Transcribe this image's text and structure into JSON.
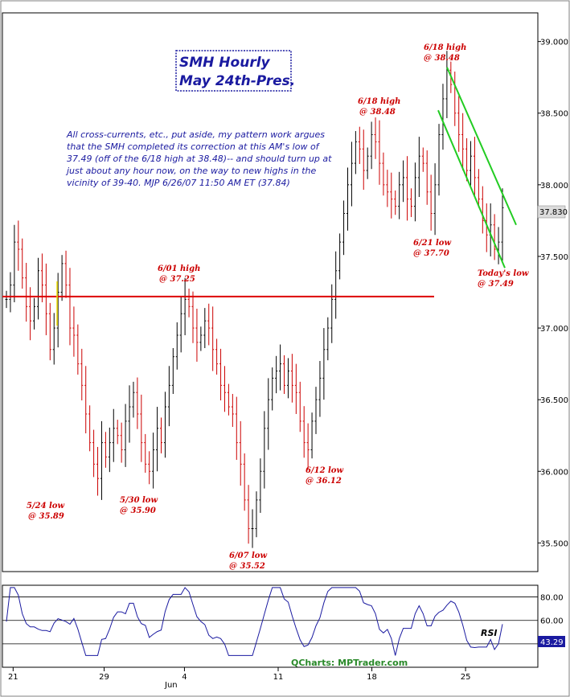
{
  "chart_data": {
    "type": "line",
    "title": "SMH Hourly\nMay 24th-Pres.",
    "title_lines": [
      "SMH Hourly",
      "May 24th-Pres."
    ],
    "commentary_lines": [
      "All cross-currents, etc., put aside, my pattern work argues",
      "that the SMH completed its correction at this AM's low of",
      "37.49 (off of the 6/18 high at 38.48)-- and should turn up at",
      "just about any hour now, on the way to new highs in the",
      "vicinity of 39-40.  MJP 6/26/07 11:50 AM ET (37.84)"
    ],
    "last_price_label": "37.830",
    "y_ticks": [
      {
        "value": 35.5,
        "label": "35.500"
      },
      {
        "value": 36.0,
        "label": "36.000"
      },
      {
        "value": 36.5,
        "label": "36.500"
      },
      {
        "value": 37.0,
        "label": "37.000"
      },
      {
        "value": 37.5,
        "label": "37.500"
      },
      {
        "value": 38.0,
        "label": "38.000"
      },
      {
        "value": 38.5,
        "label": "38.500"
      },
      {
        "value": 39.0,
        "label": "39.000"
      }
    ],
    "ylim": [
      35.3,
      39.2
    ],
    "x_ticks": [
      {
        "pos": 0.02,
        "label": "21"
      },
      {
        "pos": 0.19,
        "label": "29"
      },
      {
        "pos": 0.34,
        "label": "4"
      },
      {
        "pos": 0.515,
        "label": "11"
      },
      {
        "pos": 0.69,
        "label": "18"
      },
      {
        "pos": 0.865,
        "label": "25"
      }
    ],
    "month_label": "Jun",
    "support_level": 37.22,
    "closes": [
      37.2,
      37.3,
      37.6,
      37.55,
      37.35,
      37.15,
      37.05,
      37.15,
      37.4,
      37.3,
      37.1,
      36.85,
      37.0,
      37.25,
      37.45,
      37.3,
      37.0,
      36.95,
      36.75,
      36.6,
      36.4,
      36.2,
      36.05,
      35.95,
      36.2,
      36.1,
      36.2,
      36.3,
      36.25,
      36.15,
      36.35,
      36.45,
      36.55,
      36.4,
      36.2,
      36.05,
      36.0,
      36.15,
      36.3,
      36.2,
      36.45,
      36.6,
      36.8,
      36.95,
      37.1,
      37.2,
      37.15,
      37.0,
      36.9,
      36.95,
      37.05,
      37.0,
      36.85,
      36.75,
      36.6,
      36.55,
      36.45,
      36.4,
      36.2,
      36.05,
      35.8,
      35.6,
      35.6,
      35.8,
      36.0,
      36.3,
      36.5,
      36.65,
      36.7,
      36.75,
      36.6,
      36.7,
      36.6,
      36.55,
      36.35,
      36.2,
      36.15,
      36.35,
      36.5,
      36.65,
      36.85,
      37.0,
      37.2,
      37.4,
      37.6,
      37.8,
      38.0,
      38.15,
      38.3,
      38.25,
      38.1,
      38.2,
      38.35,
      38.3,
      38.15,
      38.0,
      37.95,
      37.9,
      37.85,
      38.0,
      38.05,
      37.9,
      37.85,
      38.05,
      38.2,
      38.15,
      37.95,
      37.8,
      38.0,
      38.35,
      38.6,
      38.8,
      38.7,
      38.5,
      38.35,
      38.25,
      38.1,
      38.2,
      38.05,
      37.9,
      37.75,
      37.65,
      37.72,
      37.55,
      37.6,
      37.84
    ],
    "annotations": [
      {
        "label": "5/24 low",
        "value": "@ 35.89"
      },
      {
        "label": "5/30 low",
        "value": "@ 35.90"
      },
      {
        "label": "6/01 high",
        "value": "@ 37.25"
      },
      {
        "label": "6/07 low",
        "value": "@ 35.52"
      },
      {
        "label": "6/12 low",
        "value": "@ 36.12"
      },
      {
        "label": "6/18 high",
        "value": "@ 38.48"
      },
      {
        "label": "6/18 high",
        "value": "@ 38.48"
      },
      {
        "label": "6/21 low",
        "value": "@ 37.70"
      },
      {
        "label": "Today's low",
        "value": "@ 37.49"
      }
    ],
    "rsi": {
      "label": "RSI",
      "levels": [
        {
          "value": 80,
          "label": "80.00"
        },
        {
          "value": 60,
          "label": "60.00"
        }
      ],
      "last_value": "43.29",
      "ylim": [
        20,
        90
      ]
    },
    "credit": "QCharts: MPTrader.com",
    "colors": {
      "up_bar": "#000000",
      "down_bar": "#cc0000",
      "support_line": "#dd0000",
      "channel": "#22cc22",
      "annotation": "#cc0000",
      "commentary": "#1a1aa0",
      "last_price_bg": "#dcdcdc",
      "rsi_last_bg": "#1a1aa0"
    }
  }
}
